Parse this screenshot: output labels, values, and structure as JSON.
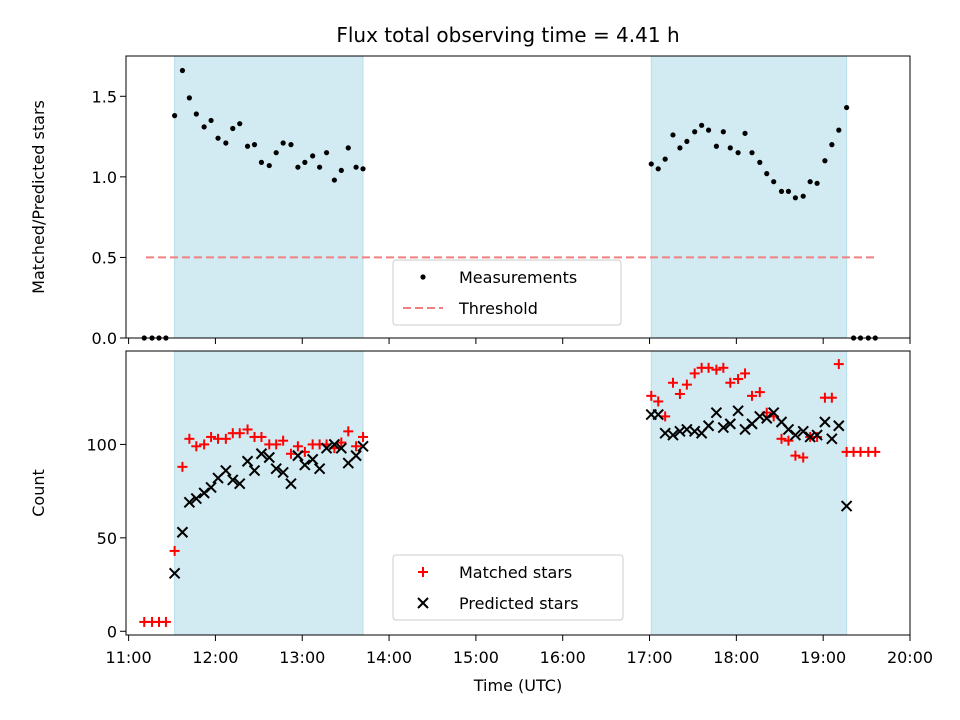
{
  "figure": {
    "title": "Flux total observing time = 4.41 h"
  },
  "chart_data": [
    {
      "type": "scatter",
      "name": "ratio",
      "title": "Flux total observing time = 4.41 h",
      "xlabel": "",
      "ylabel": "Matched/Predicted stars",
      "xlim": [
        10.97,
        20.0
      ],
      "ylim": [
        0,
        1.75
      ],
      "yticks": [
        0,
        0.5,
        1.0,
        1.5
      ],
      "ytick_labels": [
        "0.0",
        "0.5",
        "1.0",
        "1.5"
      ],
      "grid": false,
      "legend_position": "lower-center",
      "shaded_spans": [
        [
          11.53,
          13.7
        ],
        [
          17.02,
          19.27
        ]
      ],
      "shade_color": "#add8e6",
      "series": [
        {
          "name": "Measurements",
          "kind": "points",
          "color": "#000000",
          "x": [
            11.18,
            11.27,
            11.35,
            11.43,
            11.53,
            11.62,
            11.7,
            11.78,
            11.87,
            11.95,
            12.03,
            12.12,
            12.2,
            12.28,
            12.37,
            12.45,
            12.53,
            12.62,
            12.7,
            12.78,
            12.87,
            12.95,
            13.03,
            13.12,
            13.2,
            13.28,
            13.37,
            13.45,
            13.53,
            13.62,
            13.7,
            17.02,
            17.1,
            17.18,
            17.27,
            17.35,
            17.43,
            17.52,
            17.6,
            17.68,
            17.77,
            17.85,
            17.93,
            18.02,
            18.1,
            18.18,
            18.27,
            18.35,
            18.43,
            18.52,
            18.6,
            18.68,
            18.77,
            18.85,
            18.93,
            19.02,
            19.1,
            19.18,
            19.27,
            19.35,
            19.43,
            19.52,
            19.6
          ],
          "y": [
            0,
            0,
            0,
            0,
            1.38,
            1.66,
            1.49,
            1.39,
            1.31,
            1.35,
            1.24,
            1.21,
            1.3,
            1.33,
            1.19,
            1.2,
            1.09,
            1.07,
            1.15,
            1.21,
            1.2,
            1.06,
            1.09,
            1.13,
            1.06,
            1.15,
            0.98,
            1.04,
            1.18,
            1.06,
            1.05,
            1.08,
            1.05,
            1.11,
            1.26,
            1.18,
            1.22,
            1.28,
            1.32,
            1.29,
            1.19,
            1.28,
            1.18,
            1.15,
            1.27,
            1.15,
            1.09,
            1.02,
            0.97,
            0.91,
            0.91,
            0.87,
            0.88,
            0.97,
            0.96,
            1.1,
            1.2,
            1.29,
            1.43,
            0,
            0,
            0,
            0
          ]
        },
        {
          "name": "Threshold",
          "kind": "dashed-line",
          "color": "#f08080",
          "x": [
            11.2,
            19.62
          ],
          "y": [
            0.5,
            0.5
          ]
        }
      ],
      "legend": [
        "Measurements",
        "Threshold"
      ]
    },
    {
      "type": "scatter",
      "name": "counts",
      "title": "",
      "xlabel": "Time (UTC)",
      "ylabel": "Count",
      "xlim": [
        10.97,
        20.0
      ],
      "ylim": [
        -2,
        150
      ],
      "yticks": [
        0,
        50,
        100
      ],
      "ytick_labels": [
        "0",
        "50",
        "100"
      ],
      "xticks": [
        11,
        12,
        13,
        14,
        15,
        16,
        17,
        18,
        19,
        20
      ],
      "xtick_labels": [
        "11:00",
        "12:00",
        "13:00",
        "14:00",
        "15:00",
        "16:00",
        "17:00",
        "18:00",
        "19:00",
        "20:00"
      ],
      "grid": false,
      "legend_position": "lower-center",
      "shaded_spans": [
        [
          11.53,
          13.7
        ],
        [
          17.02,
          19.27
        ]
      ],
      "shade_color": "#add8e6",
      "series": [
        {
          "name": "Matched stars",
          "kind": "plus",
          "color": "#ff0000",
          "x": [
            11.18,
            11.27,
            11.35,
            11.43,
            11.53,
            11.62,
            11.7,
            11.78,
            11.87,
            11.95,
            12.03,
            12.12,
            12.2,
            12.28,
            12.37,
            12.45,
            12.53,
            12.62,
            12.7,
            12.78,
            12.87,
            12.95,
            13.03,
            13.12,
            13.2,
            13.28,
            13.37,
            13.45,
            13.53,
            13.62,
            13.7,
            17.02,
            17.1,
            17.18,
            17.27,
            17.35,
            17.43,
            17.52,
            17.6,
            17.68,
            17.77,
            17.85,
            17.93,
            18.02,
            18.1,
            18.18,
            18.27,
            18.35,
            18.43,
            18.52,
            18.6,
            18.68,
            18.77,
            18.85,
            18.93,
            19.02,
            19.1,
            19.18,
            19.27,
            19.35,
            19.43,
            19.52,
            19.6
          ],
          "y": [
            5,
            5,
            5,
            5,
            43,
            88,
            103,
            99,
            100,
            104,
            103,
            103,
            106,
            106,
            108,
            104,
            104,
            100,
            100,
            102,
            95,
            99,
            96,
            100,
            100,
            100,
            98,
            101,
            107,
            99,
            104,
            126,
            123,
            115,
            133,
            127,
            132,
            138,
            141,
            141,
            140,
            141,
            133,
            135,
            138,
            126,
            128,
            117,
            115,
            103,
            102,
            94,
            93,
            104,
            104,
            125,
            125,
            143,
            96,
            96,
            96,
            96,
            96
          ]
        },
        {
          "name": "Predicted stars",
          "kind": "cross",
          "color": "#000000",
          "x": [
            11.53,
            11.62,
            11.7,
            11.78,
            11.87,
            11.95,
            12.03,
            12.12,
            12.2,
            12.28,
            12.37,
            12.45,
            12.53,
            12.62,
            12.7,
            12.78,
            12.87,
            12.95,
            13.03,
            13.12,
            13.2,
            13.28,
            13.37,
            13.45,
            13.53,
            13.62,
            13.7,
            17.02,
            17.1,
            17.18,
            17.27,
            17.35,
            17.43,
            17.52,
            17.6,
            17.68,
            17.77,
            17.85,
            17.93,
            18.02,
            18.1,
            18.18,
            18.27,
            18.35,
            18.43,
            18.52,
            18.6,
            18.68,
            18.77,
            18.85,
            18.93,
            19.02,
            19.1,
            19.18,
            19.27
          ],
          "y": [
            31,
            53,
            69,
            71,
            74,
            77,
            82,
            86,
            81,
            79,
            91,
            86,
            95,
            93,
            87,
            85,
            79,
            94,
            89,
            92,
            87,
            98,
            100,
            98,
            90,
            94,
            99,
            116,
            116,
            106,
            105,
            107,
            108,
            107,
            106,
            110,
            117,
            109,
            111,
            118,
            108,
            111,
            115,
            114,
            117,
            112,
            108,
            105,
            107,
            104,
            105,
            112,
            103,
            110,
            67
          ]
        }
      ],
      "legend": [
        "Matched stars",
        "Predicted stars"
      ]
    }
  ]
}
